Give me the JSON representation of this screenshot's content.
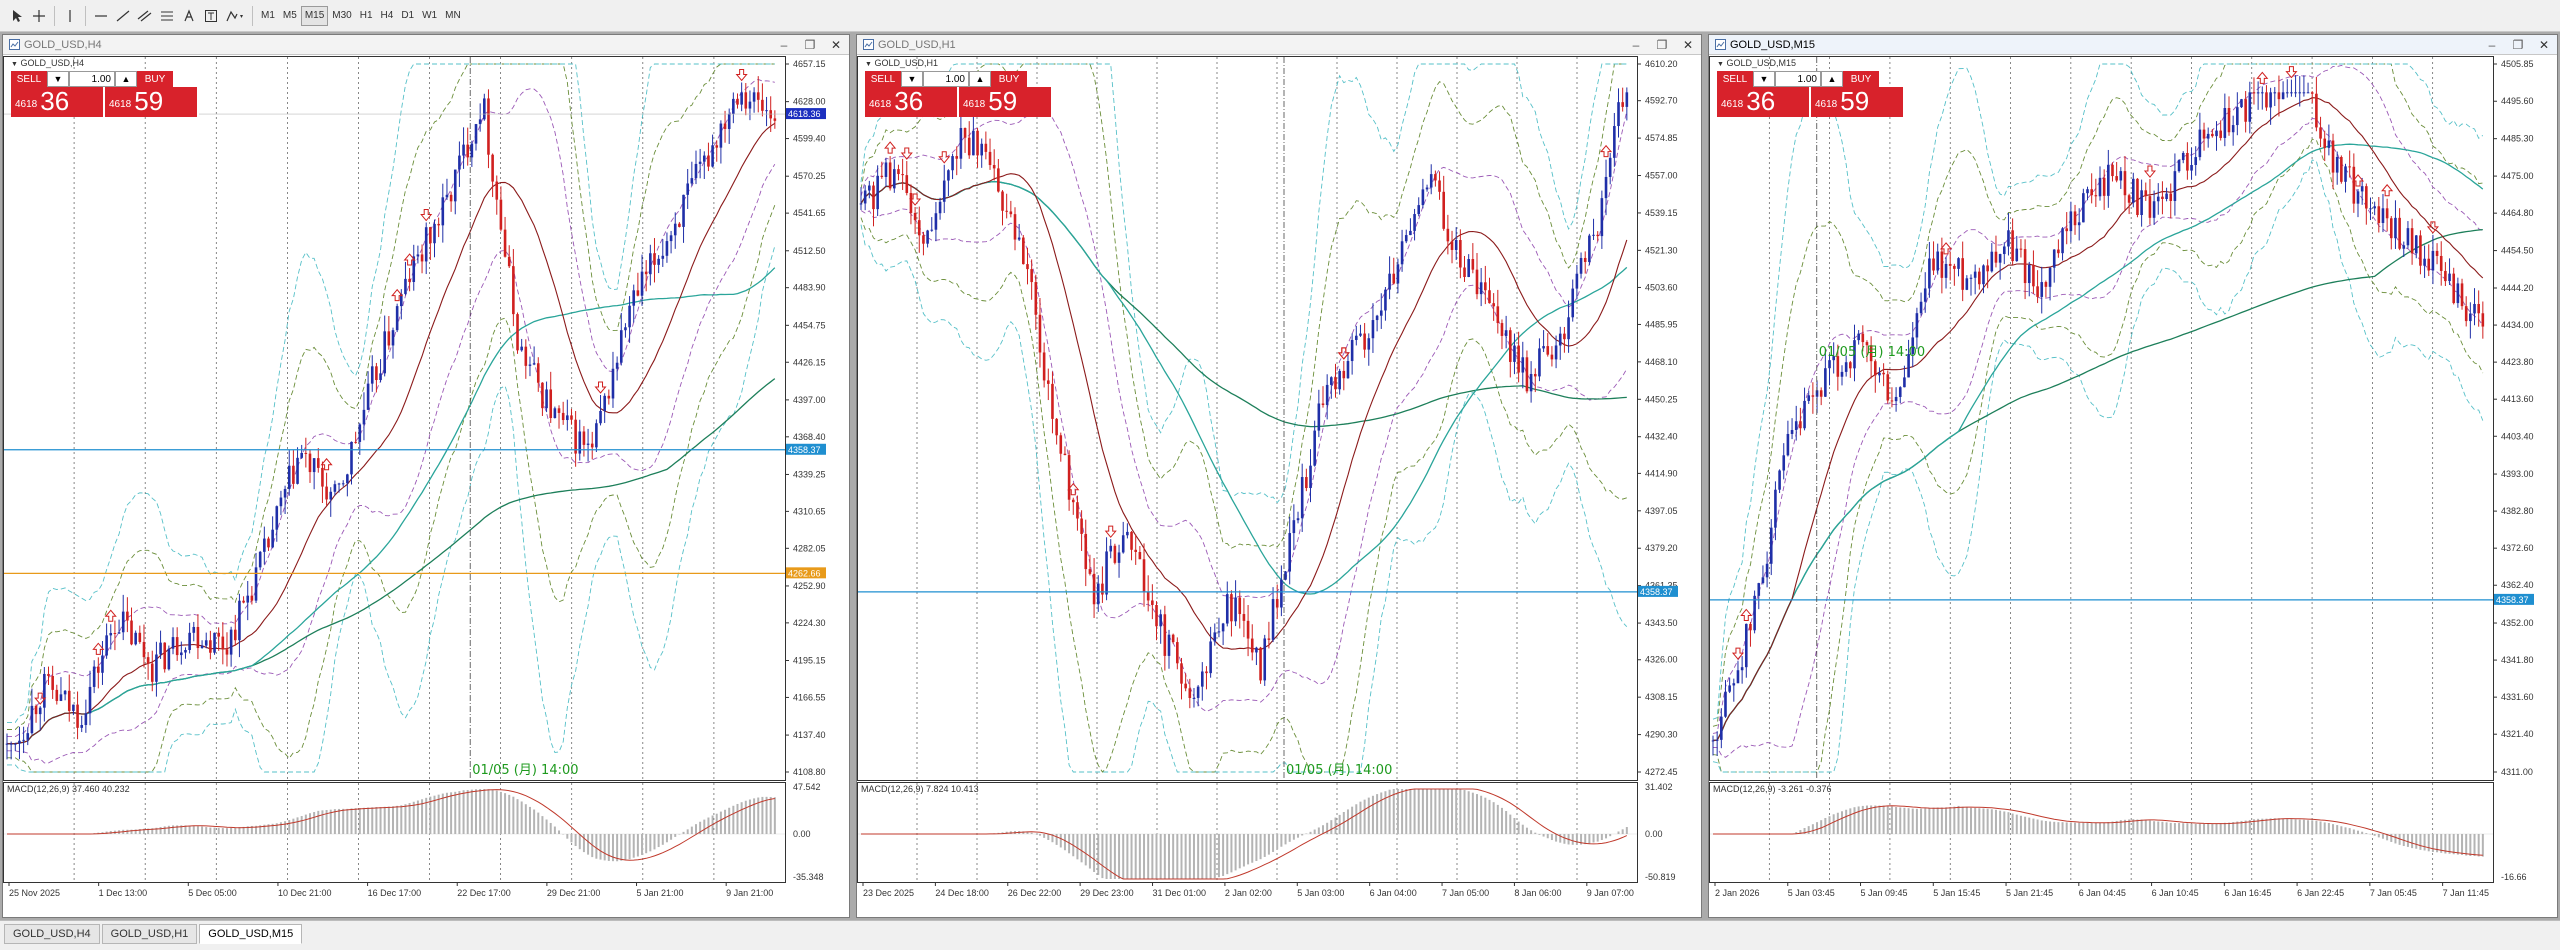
{
  "toolbar": {
    "timeframes": [
      "M1",
      "M5",
      "M15",
      "M30",
      "H1",
      "H4",
      "D1",
      "W1",
      "MN"
    ],
    "active_timeframe": "M15",
    "tools": [
      "cursor-icon",
      "crosshair-icon",
      "vertical-line-icon",
      "horizontal-line-icon",
      "trendline-icon",
      "channel-icon",
      "text-icon",
      "label-icon",
      "shapes-icon"
    ]
  },
  "windows": [
    {
      "title": "GOLD_USD,H4",
      "label": "GOLD_USD,H4",
      "lot": "1.00",
      "sell_label": "SELL",
      "buy_label": "BUY",
      "sell_small": "4618",
      "sell_big": "36",
      "buy_small": "4618",
      "buy_big": "59",
      "price_axis": [
        "4657.15",
        "4628.00",
        "4599.40",
        "4570.25",
        "4541.65",
        "4512.50",
        "4483.90",
        "4454.75",
        "4426.15",
        "4397.00",
        "4368.40",
        "4339.25",
        "4310.65",
        "4282.05",
        "4252.90",
        "4224.30",
        "4195.15",
        "4166.55",
        "4137.40",
        "4108.80"
      ],
      "price_ylim": [
        4108.8,
        4657.15
      ],
      "current_price_tag": "4618.36",
      "hline_blue_tag": "4358.37",
      "hline_orange_tag": "4262.66",
      "hline_blue": 4358.37,
      "hline_orange": 4262.66,
      "annotation": "01/05 (月) 14:00",
      "macd_label": "MACD(12,26,9) 37.460 40.232",
      "macd_axis": [
        "47.542",
        "0.00",
        "-35.348"
      ],
      "time_axis": [
        "25 Nov 2025",
        "1 Dec 13:00",
        "5 Dec 05:00",
        "10 Dec 21:00",
        "16 Dec 17:00",
        "22 Dec 17:00",
        "29 Dec 21:00",
        "5 Jan 21:00",
        "9 Jan 21:00"
      ],
      "trend": [
        0.02,
        0.12,
        0.08,
        0.22,
        0.15,
        0.2,
        0.18,
        0.3,
        0.45,
        0.38,
        0.55,
        0.7,
        0.8,
        0.95,
        0.6,
        0.5,
        0.45,
        0.65,
        0.75,
        0.85,
        0.97,
        0.92
      ]
    },
    {
      "title": "GOLD_USD,H1",
      "label": "GOLD_USD,H1",
      "lot": "1.00",
      "sell_label": "SELL",
      "buy_label": "BUY",
      "sell_small": "4618",
      "sell_big": "36",
      "buy_small": "4618",
      "buy_big": "59",
      "price_axis": [
        "4610.20",
        "4592.70",
        "4574.85",
        "4557.00",
        "4539.15",
        "4521.30",
        "4503.60",
        "4485.95",
        "4468.10",
        "4450.25",
        "4432.40",
        "4414.90",
        "4397.05",
        "4379.20",
        "4361.35",
        "4343.50",
        "4326.00",
        "4308.15",
        "4290.30",
        "4272.45"
      ],
      "price_ylim": [
        4272.45,
        4610.2
      ],
      "current_price_tag": "",
      "hline_blue_tag": "4358.37",
      "hline_orange_tag": "",
      "hline_blue": 4358.37,
      "hline_orange": null,
      "annotation": "01/05 (月) 14:00",
      "macd_label": "MACD(12,26,9) 7.824 10.413",
      "macd_axis": [
        "31.402",
        "0.00",
        "-50.819"
      ],
      "time_axis": [
        "23 Dec 2025",
        "24 Dec 18:00",
        "26 Dec 22:00",
        "29 Dec 23:00",
        "31 Dec 01:00",
        "2 Jan 02:00",
        "5 Jan 03:00",
        "6 Jan 04:00",
        "7 Jan 05:00",
        "8 Jan 06:00",
        "9 Jan 07:00"
      ],
      "trend": [
        0.8,
        0.85,
        0.75,
        0.9,
        0.85,
        0.7,
        0.45,
        0.25,
        0.35,
        0.2,
        0.1,
        0.25,
        0.15,
        0.35,
        0.55,
        0.6,
        0.7,
        0.85,
        0.72,
        0.65,
        0.55,
        0.62,
        0.75,
        0.98
      ]
    },
    {
      "title": "GOLD_USD,M15",
      "label": "GOLD_USD,M15",
      "lot": "1.00",
      "sell_label": "SELL",
      "buy_label": "BUY",
      "sell_small": "4618",
      "sell_big": "36",
      "buy_small": "4618",
      "buy_big": "59",
      "price_axis": [
        "4505.85",
        "4495.60",
        "4485.30",
        "4475.00",
        "4464.80",
        "4454.50",
        "4444.20",
        "4434.00",
        "4423.80",
        "4413.60",
        "4403.40",
        "4393.00",
        "4382.80",
        "4372.60",
        "4362.40",
        "4352.00",
        "4341.80",
        "4331.60",
        "4321.40",
        "4311.00"
      ],
      "price_ylim": [
        4311.0,
        4505.85
      ],
      "current_price_tag": "",
      "hline_blue_tag": "4358.37",
      "hline_orange_tag": "",
      "hline_blue": 4358.37,
      "hline_orange": null,
      "annotation": "01/05 (月) 14:00",
      "macd_label": "MACD(12,26,9) -3.261 -0.376",
      "macd_axis": [
        "-16.66"
      ],
      "time_axis": [
        "2 Jan 2026",
        "5 Jan 03:45",
        "5 Jan 09:45",
        "5 Jan 15:45",
        "5 Jan 21:45",
        "6 Jan 04:45",
        "6 Jan 10:45",
        "6 Jan 16:45",
        "6 Jan 22:45",
        "7 Jan 05:45",
        "7 Jan 11:45"
      ],
      "trend": [
        0.05,
        0.2,
        0.45,
        0.55,
        0.6,
        0.52,
        0.72,
        0.7,
        0.75,
        0.68,
        0.8,
        0.85,
        0.78,
        0.88,
        0.92,
        0.96,
        0.98,
        0.85,
        0.8,
        0.75,
        0.7,
        0.62
      ]
    }
  ],
  "bottom_tabs": [
    "GOLD_USD,H4",
    "GOLD_USD,H1",
    "GOLD_USD,M15"
  ],
  "active_tab": 2,
  "colors": {
    "bull": "#1f2fa8",
    "bear": "#d0201f",
    "ma_fast": "#8b1a1a",
    "ma_mid": "#2aa59a",
    "ma_slow": "#1d7f5a",
    "band": "#56c0c8",
    "band2": "#6b8e3a",
    "hline_blue": "#1f8fd0",
    "hline_orange": "#e89a1a",
    "annotation": "#1e9a1e",
    "macd_hist": "#b4b4b4",
    "macd_signal": "#c0392b"
  }
}
